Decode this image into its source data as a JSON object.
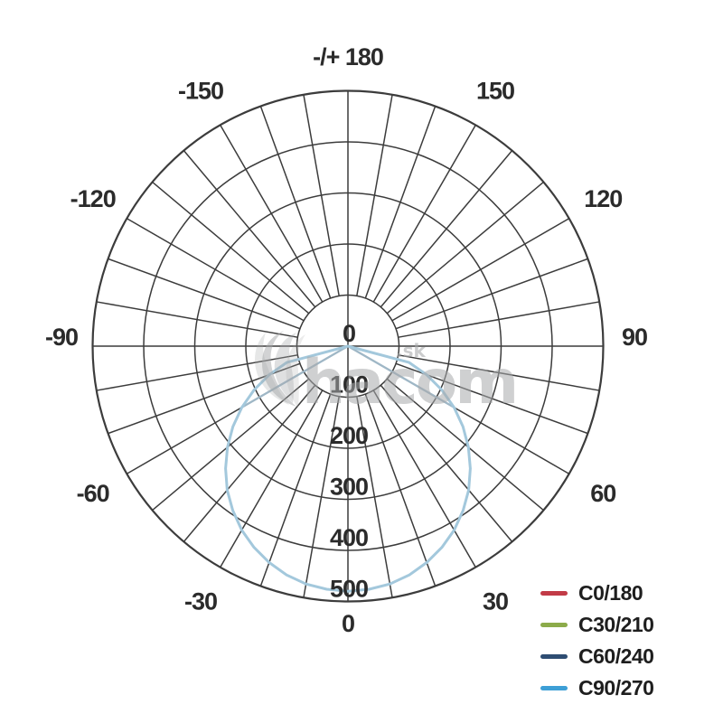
{
  "page": {
    "background": "#ffffff"
  },
  "watermark": {
    "text": "hacom",
    "suffix": ".sk"
  },
  "legend": {
    "items": [
      {
        "label": "C0/180",
        "color": "#c23b47"
      },
      {
        "label": "C30/210",
        "color": "#8cab4a"
      },
      {
        "label": "C60/240",
        "color": "#2e4d72"
      },
      {
        "label": "C90/270",
        "color": "#3d9fd6"
      }
    ]
  },
  "chart_data": {
    "type": "polar",
    "variant": "photometric-luminous-intensity-distribution",
    "title": "-/+ 180",
    "angle_unit": "deg",
    "zero_direction": "down",
    "grid": true,
    "spoke_step_deg": 10,
    "angle_labels": [
      {
        "angle": 180,
        "label": "-/+ 180"
      },
      {
        "angle": -150,
        "label": "-150"
      },
      {
        "angle": 150,
        "label": "150"
      },
      {
        "angle": -120,
        "label": "-120"
      },
      {
        "angle": 120,
        "label": "120"
      },
      {
        "angle": -90,
        "label": "-90"
      },
      {
        "angle": 90,
        "label": "90"
      },
      {
        "angle": -60,
        "label": "-60"
      },
      {
        "angle": 60,
        "label": "60"
      },
      {
        "angle": -30,
        "label": "-30"
      },
      {
        "angle": 30,
        "label": "30"
      },
      {
        "angle": 0,
        "label": "0"
      }
    ],
    "radial_ticks": [
      0,
      100,
      200,
      300,
      400,
      500
    ],
    "radial_max": 500,
    "legend_position": "bottom-right",
    "series": [
      {
        "name": "C0/180",
        "color": "#c23b47",
        "symmetric": true,
        "angles_deg": [
          0,
          5,
          10,
          15,
          20,
          25,
          30,
          35,
          40,
          45,
          50,
          55,
          60,
          65,
          70,
          75,
          80,
          85,
          90
        ],
        "values": [
          480,
          478,
          473,
          464,
          451,
          435,
          416,
          393,
          368,
          339,
          308,
          275,
          240,
          203,
          164,
          124,
          0,
          0,
          0
        ]
      },
      {
        "name": "C30/210",
        "color": "#8cab4a",
        "symmetric": true,
        "angles_deg": [
          0,
          5,
          10,
          15,
          20,
          25,
          30,
          35,
          40,
          45,
          50,
          55,
          60,
          65,
          70,
          75,
          80,
          85,
          90
        ],
        "values": [
          480,
          478,
          473,
          464,
          451,
          435,
          416,
          393,
          368,
          339,
          308,
          275,
          240,
          203,
          164,
          124,
          0,
          0,
          0
        ]
      },
      {
        "name": "C60/240",
        "color": "#2e4d72",
        "symmetric": true,
        "angles_deg": [
          0,
          5,
          10,
          15,
          20,
          25,
          30,
          35,
          40,
          45,
          50,
          55,
          60,
          65,
          70,
          75,
          80,
          85,
          90
        ],
        "values": [
          480,
          478,
          473,
          464,
          451,
          435,
          416,
          393,
          368,
          339,
          308,
          275,
          240,
          0,
          0,
          0,
          0,
          0,
          0
        ]
      },
      {
        "name": "C90/270",
        "color": "#3d9fd6",
        "symmetric": true,
        "angles_deg": [
          0,
          5,
          10,
          15,
          20,
          25,
          30,
          35,
          40,
          45,
          50,
          55,
          60,
          65,
          70,
          75,
          80,
          85,
          90
        ],
        "values": [
          480,
          478,
          473,
          464,
          451,
          435,
          416,
          393,
          368,
          339,
          308,
          275,
          240,
          203,
          164,
          124,
          0,
          0,
          0
        ]
      }
    ]
  }
}
